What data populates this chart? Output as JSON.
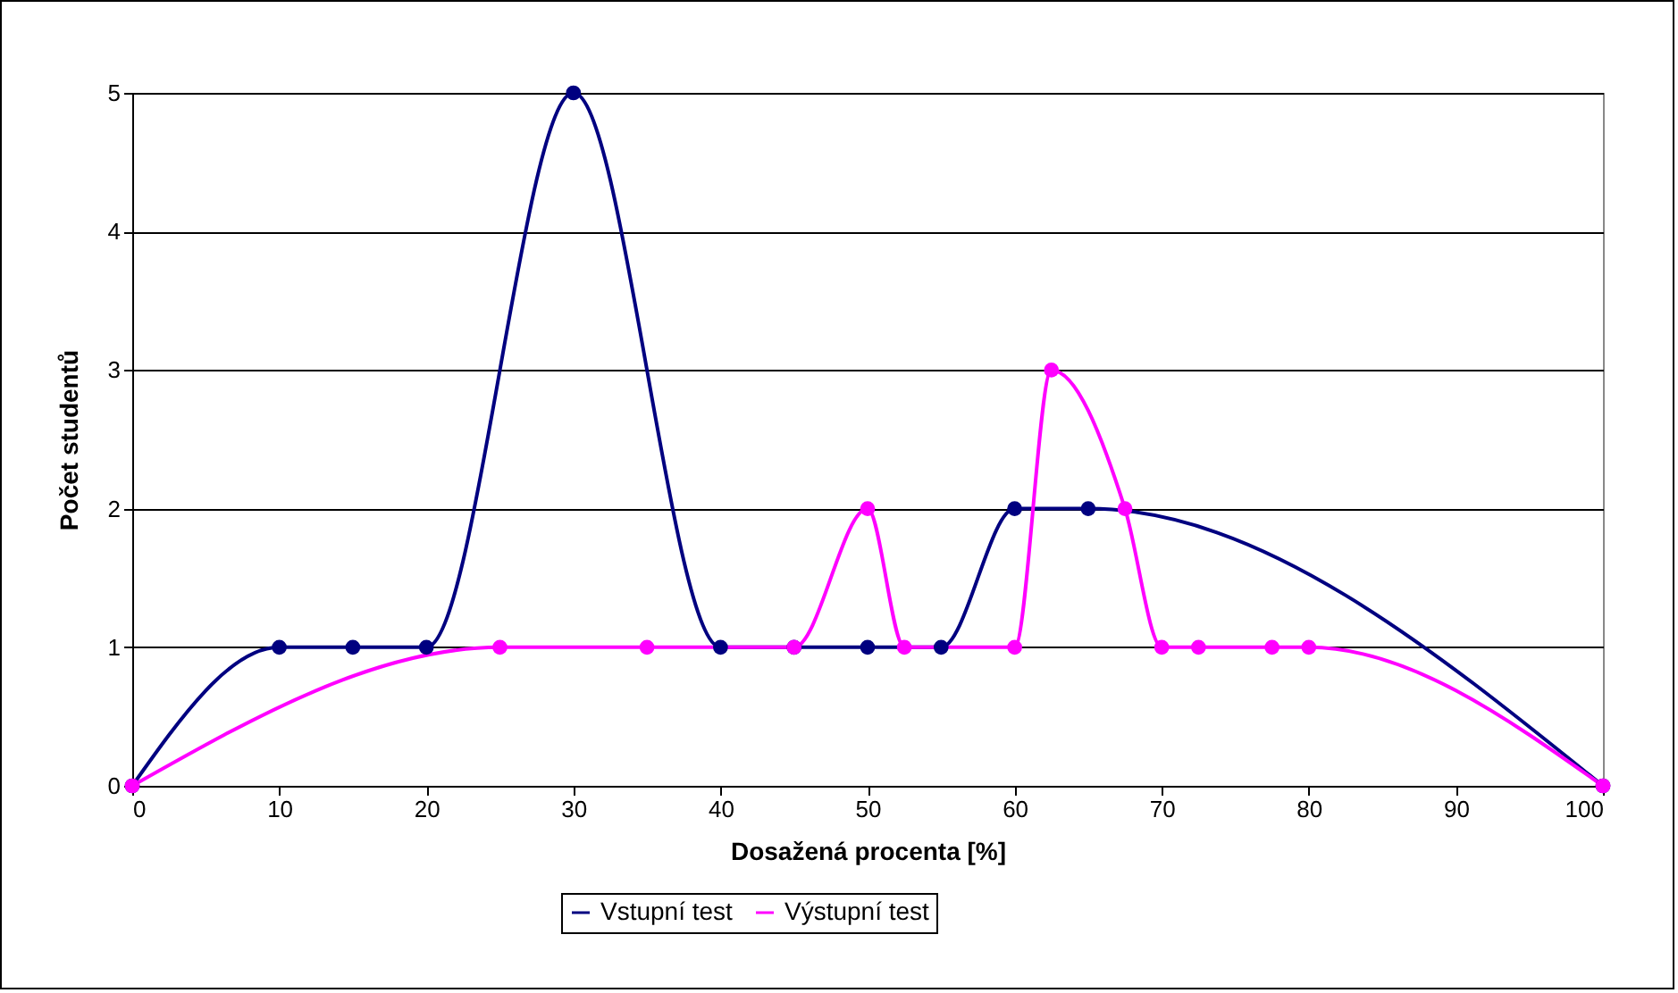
{
  "chart_data": {
    "type": "line",
    "xlabel": "Dosažená procenta [%]",
    "ylabel": "Počet studentů",
    "xlim": [
      0,
      100
    ],
    "xticks": [
      0,
      10,
      20,
      30,
      40,
      50,
      60,
      70,
      80,
      90,
      100
    ],
    "ylim": [
      0,
      5
    ],
    "yticks": [
      0,
      1,
      2,
      3,
      4,
      5
    ],
    "grid": "y",
    "legend": "bottom",
    "marker": "circle",
    "series": [
      {
        "name": "Vstupní test",
        "color": "#000080",
        "x": [
          0,
          10,
          15,
          20,
          30,
          40,
          45,
          50,
          55,
          60,
          65,
          100
        ],
        "values": [
          0,
          1,
          1,
          1,
          5,
          1,
          1,
          1,
          1,
          2,
          2,
          0
        ]
      },
      {
        "name": "Výstupní test",
        "color": "#ff00ff",
        "x": [
          0,
          25,
          35,
          45,
          50,
          52.5,
          60,
          62.5,
          67.5,
          70,
          72.5,
          77.5,
          80,
          100
        ],
        "values": [
          0,
          1,
          1,
          1,
          2,
          1,
          1,
          3,
          2,
          1,
          1,
          1,
          1,
          0
        ]
      }
    ]
  }
}
